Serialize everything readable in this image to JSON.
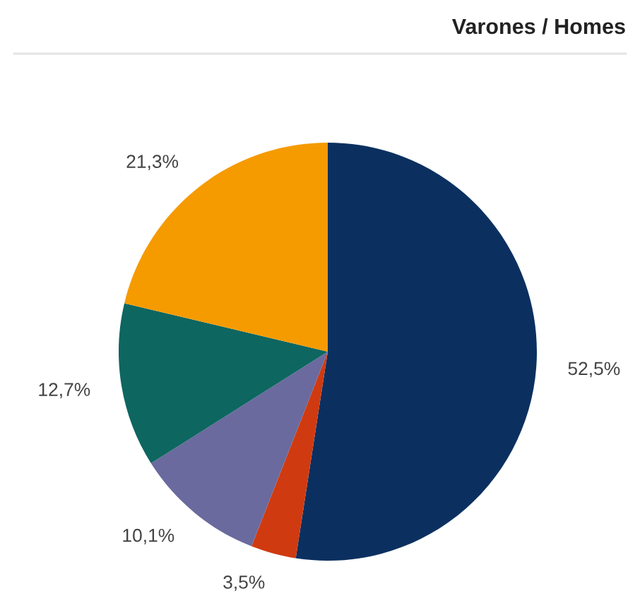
{
  "chart_data": {
    "type": "pie",
    "title": "Varones / Homes",
    "categories": [
      null,
      null,
      null,
      null,
      null
    ],
    "values": [
      52.5,
      3.5,
      10.1,
      12.7,
      21.3
    ],
    "colors": [
      "#0b3060",
      "#d03a10",
      "#6a6a9e",
      "#0e6660",
      "#f59b00"
    ],
    "value_labels": [
      "52,5%",
      "3,5%",
      "10,1%",
      "12,7%",
      "21,3%"
    ],
    "legend": false
  }
}
